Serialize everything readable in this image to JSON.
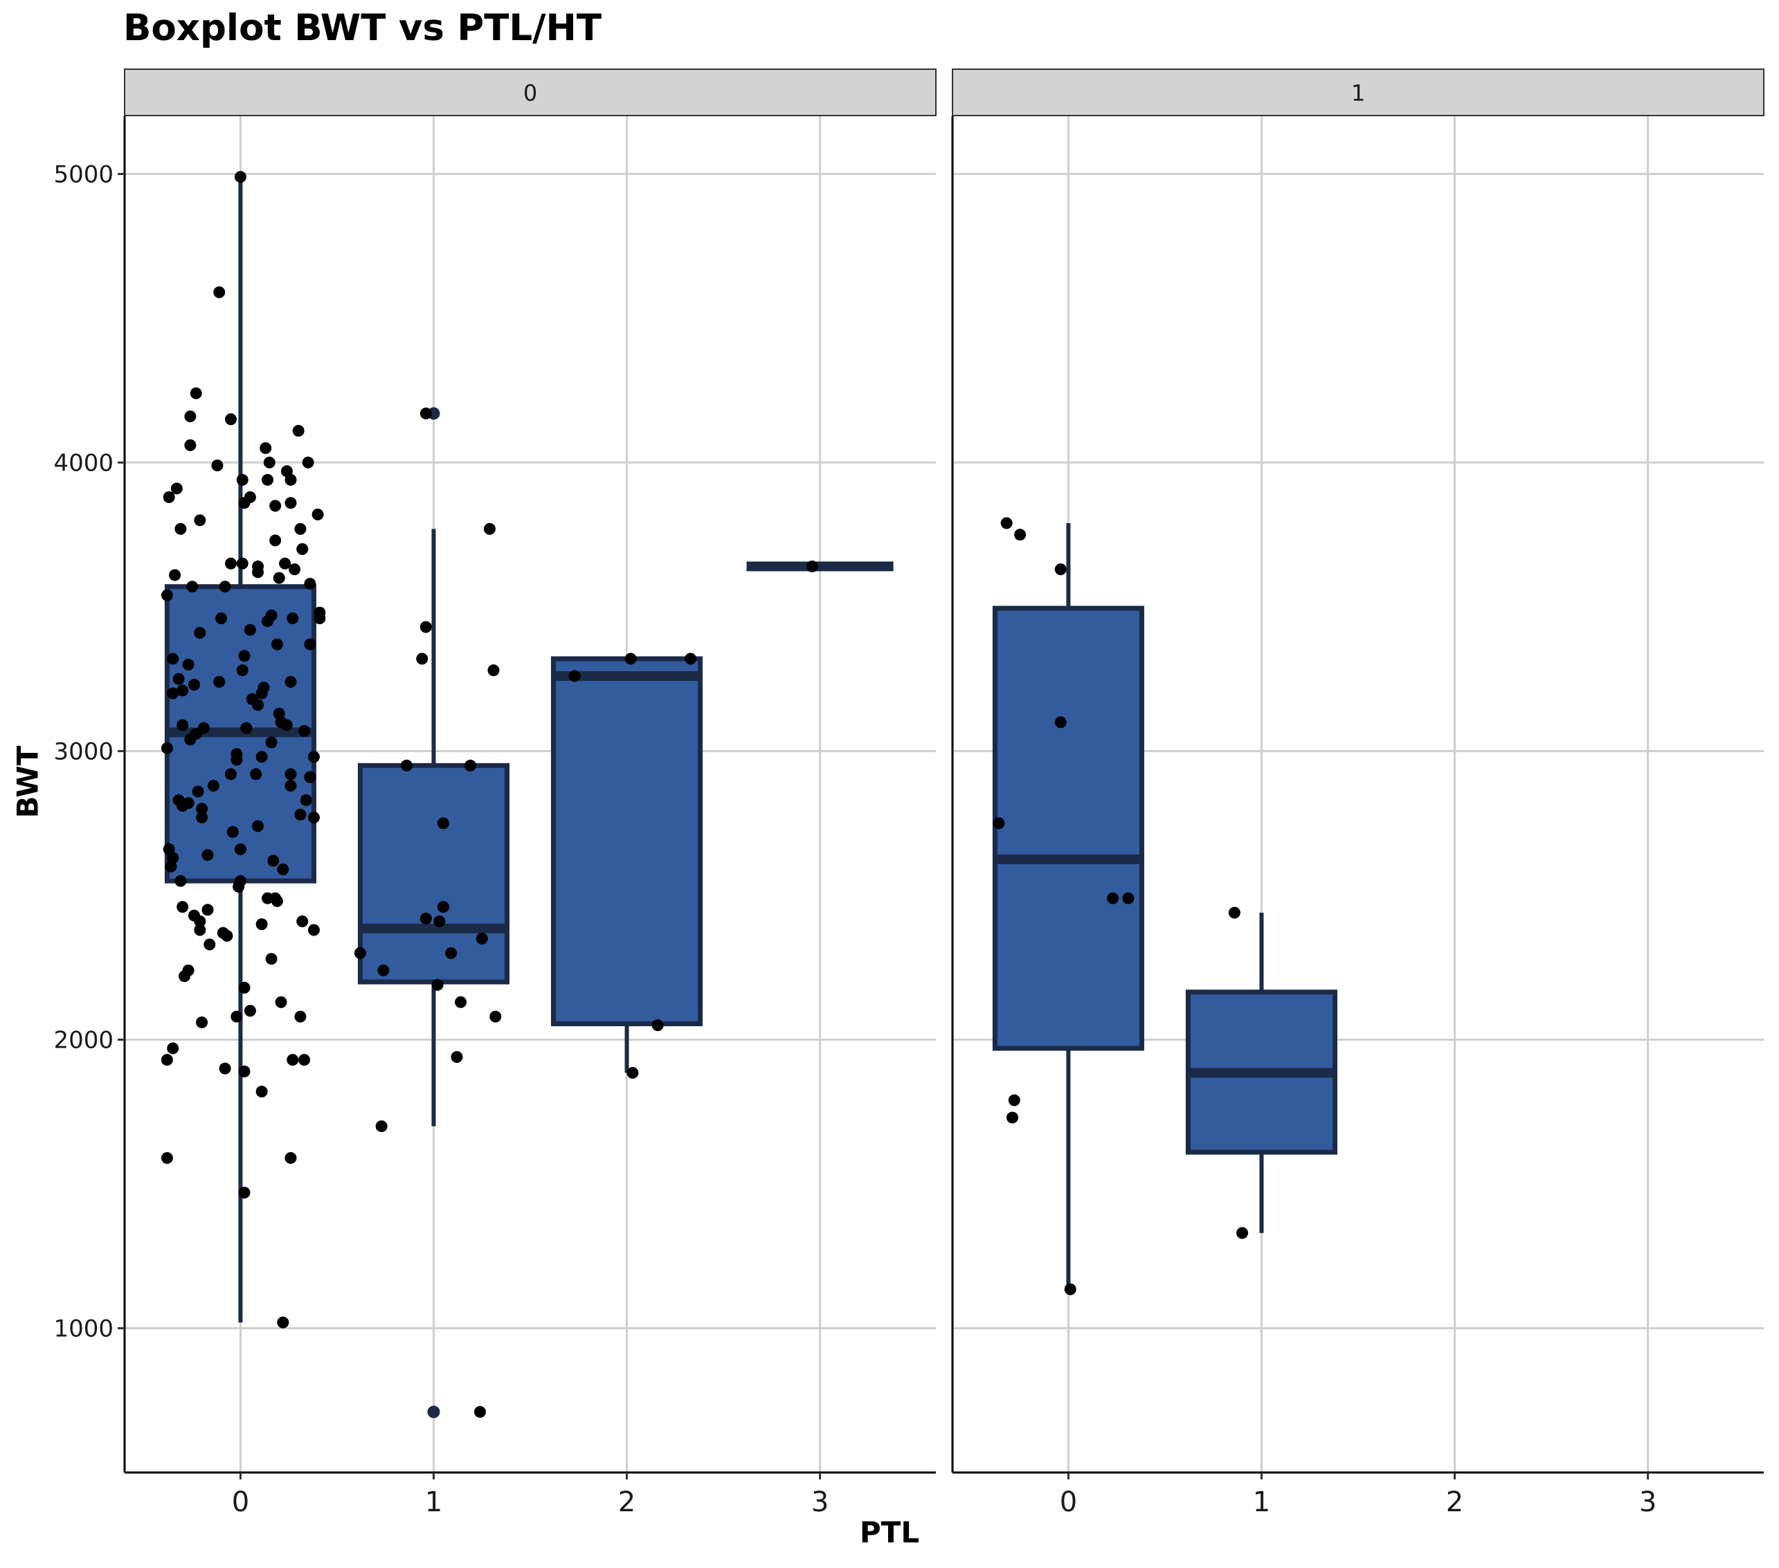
{
  "chart_data": {
    "type": "boxplot",
    "title": "Boxplot BWT vs PTL/HT",
    "xlabel": "PTL",
    "ylabel": "BWT",
    "x_categories": [
      0,
      1,
      2,
      3
    ],
    "xlim": [
      -0.6,
      3.6
    ],
    "ylim": [
      500,
      5200
    ],
    "y_ticks": [
      1000,
      2000,
      3000,
      4000,
      5000
    ],
    "grid": true,
    "colors": {
      "box_fill": "#335c9f",
      "box_outline": "#1b2a47",
      "points": "#000000",
      "strip_fill": "#d3d3d3",
      "grid": "#cfcfcf"
    },
    "facets": [
      {
        "label": "0",
        "boxes": [
          {
            "x": 0,
            "lower_whisker": 1020,
            "q1": 2550,
            "median": 3065,
            "q3": 3570,
            "upper_whisker": 4990
          },
          {
            "x": 1,
            "lower_whisker": 1700,
            "q1": 2200,
            "median": 2385,
            "q3": 2950,
            "upper_whisker": 3770,
            "outliers": [
              4170,
              710
            ]
          },
          {
            "x": 2,
            "lower_whisker": 1885,
            "q1": 2055,
            "median": 3260,
            "q3": 3320,
            "upper_whisker": 3320
          },
          {
            "x": 3,
            "lower_whisker": 3640,
            "q1": 3640,
            "median": 3640,
            "q3": 3640,
            "upper_whisker": 3640
          }
        ],
        "points": [
          [
            0.0,
            4990
          ],
          [
            -0.11,
            4590
          ],
          [
            -0.23,
            4240
          ],
          [
            -0.05,
            4150
          ],
          [
            -0.26,
            4160
          ],
          [
            0.3,
            4110
          ],
          [
            -0.26,
            4060
          ],
          [
            0.13,
            4050
          ],
          [
            -0.12,
            3990
          ],
          [
            0.35,
            4000
          ],
          [
            0.15,
            4000
          ],
          [
            0.24,
            3970
          ],
          [
            0.01,
            3940
          ],
          [
            0.14,
            3940
          ],
          [
            0.26,
            3940
          ],
          [
            -0.33,
            3910
          ],
          [
            -0.37,
            3880
          ],
          [
            0.05,
            3880
          ],
          [
            0.02,
            3860
          ],
          [
            0.18,
            3850
          ],
          [
            0.26,
            3860
          ],
          [
            0.4,
            3820
          ],
          [
            -0.21,
            3800
          ],
          [
            -0.31,
            3770
          ],
          [
            0.31,
            3770
          ],
          [
            0.18,
            3730
          ],
          [
            0.32,
            3700
          ],
          [
            -0.05,
            3650
          ],
          [
            0.01,
            3650
          ],
          [
            0.09,
            3640
          ],
          [
            0.23,
            3650
          ],
          [
            0.09,
            3620
          ],
          [
            -0.34,
            3610
          ],
          [
            0.28,
            3630
          ],
          [
            0.2,
            3600
          ],
          [
            0.36,
            3580
          ],
          [
            -0.25,
            3570
          ],
          [
            -0.08,
            3570
          ],
          [
            -0.38,
            3540
          ],
          [
            0.41,
            3480
          ],
          [
            0.41,
            3460
          ],
          [
            -0.1,
            3460
          ],
          [
            0.16,
            3470
          ],
          [
            0.27,
            3460
          ],
          [
            0.14,
            3450
          ],
          [
            -0.21,
            3410
          ],
          [
            0.05,
            3420
          ],
          [
            0.19,
            3370
          ],
          [
            0.36,
            3370
          ],
          [
            0.02,
            3330
          ],
          [
            -0.35,
            3320
          ],
          [
            -0.27,
            3300
          ],
          [
            0.01,
            3280
          ],
          [
            -0.32,
            3250
          ],
          [
            -0.11,
            3240
          ],
          [
            0.26,
            3240
          ],
          [
            -0.24,
            3230
          ],
          [
            0.12,
            3220
          ],
          [
            -0.3,
            3210
          ],
          [
            -0.35,
            3200
          ],
          [
            0.11,
            3200
          ],
          [
            0.06,
            3180
          ],
          [
            0.09,
            3160
          ],
          [
            0.2,
            3130
          ],
          [
            0.21,
            3100
          ],
          [
            -0.3,
            3090
          ],
          [
            0.24,
            3090
          ],
          [
            -0.19,
            3080
          ],
          [
            0.03,
            3080
          ],
          [
            0.33,
            3070
          ],
          [
            -0.23,
            3060
          ],
          [
            -0.26,
            3040
          ],
          [
            0.16,
            3030
          ],
          [
            0.38,
            2980
          ],
          [
            -0.02,
            2990
          ],
          [
            0.11,
            2980
          ],
          [
            -0.38,
            3010
          ],
          [
            -0.02,
            2970
          ],
          [
            -0.05,
            2920
          ],
          [
            0.08,
            2920
          ],
          [
            0.26,
            2920
          ],
          [
            0.36,
            2910
          ],
          [
            0.26,
            2880
          ],
          [
            -0.14,
            2880
          ],
          [
            -0.22,
            2860
          ],
          [
            -0.32,
            2830
          ],
          [
            -0.27,
            2820
          ],
          [
            0.34,
            2830
          ],
          [
            -0.3,
            2810
          ],
          [
            -0.2,
            2800
          ],
          [
            0.31,
            2780
          ],
          [
            -0.2,
            2770
          ],
          [
            0.38,
            2770
          ],
          [
            0.09,
            2740
          ],
          [
            -0.04,
            2720
          ],
          [
            0.0,
            2660
          ],
          [
            -0.37,
            2660
          ],
          [
            -0.35,
            2630
          ],
          [
            -0.17,
            2640
          ],
          [
            0.17,
            2620
          ],
          [
            -0.36,
            2600
          ],
          [
            0.22,
            2590
          ],
          [
            -0.31,
            2550
          ],
          [
            -0.01,
            2530
          ],
          [
            0.0,
            2550
          ],
          [
            0.14,
            2490
          ],
          [
            0.18,
            2490
          ],
          [
            0.19,
            2480
          ],
          [
            -0.3,
            2460
          ],
          [
            -0.17,
            2450
          ],
          [
            -0.24,
            2430
          ],
          [
            -0.21,
            2410
          ],
          [
            0.32,
            2410
          ],
          [
            -0.21,
            2380
          ],
          [
            0.38,
            2380
          ],
          [
            -0.09,
            2370
          ],
          [
            -0.07,
            2360
          ],
          [
            0.11,
            2400
          ],
          [
            -0.16,
            2330
          ],
          [
            0.16,
            2280
          ],
          [
            -0.27,
            2240
          ],
          [
            -0.29,
            2220
          ],
          [
            0.02,
            2180
          ],
          [
            0.21,
            2130
          ],
          [
            0.05,
            2100
          ],
          [
            0.31,
            2080
          ],
          [
            -0.02,
            2080
          ],
          [
            -0.2,
            2060
          ],
          [
            -0.35,
            1970
          ],
          [
            -0.38,
            1930
          ],
          [
            0.27,
            1930
          ],
          [
            0.33,
            1930
          ],
          [
            -0.08,
            1900
          ],
          [
            0.02,
            1890
          ],
          [
            0.11,
            1820
          ],
          [
            -0.38,
            1590
          ],
          [
            0.26,
            1590
          ],
          [
            0.02,
            1470
          ],
          [
            0.22,
            1020
          ],
          [
            0.96,
            4170
          ],
          [
            1.29,
            3770
          ],
          [
            0.96,
            3430
          ],
          [
            1.31,
            3280
          ],
          [
            0.94,
            3320
          ],
          [
            0.86,
            2950
          ],
          [
            1.19,
            2950
          ],
          [
            1.05,
            2750
          ],
          [
            1.05,
            2460
          ],
          [
            0.96,
            2420
          ],
          [
            1.03,
            2410
          ],
          [
            1.25,
            2350
          ],
          [
            0.62,
            2300
          ],
          [
            1.09,
            2300
          ],
          [
            0.74,
            2240
          ],
          [
            1.02,
            2190
          ],
          [
            1.14,
            2130
          ],
          [
            1.32,
            2080
          ],
          [
            1.12,
            1940
          ],
          [
            0.73,
            1700
          ],
          [
            1.24,
            710
          ],
          [
            1.73,
            3260
          ],
          [
            2.02,
            3320
          ],
          [
            2.33,
            3320
          ],
          [
            2.16,
            2050
          ],
          [
            2.03,
            1885
          ],
          [
            2.96,
            3640
          ]
        ]
      },
      {
        "label": "1",
        "boxes": [
          {
            "x": 0,
            "lower_whisker": 1135,
            "q1": 1970,
            "median": 2625,
            "q3": 3495,
            "upper_whisker": 3790
          },
          {
            "x": 1,
            "lower_whisker": 1330,
            "q1": 1610,
            "median": 1885,
            "q3": 2165,
            "upper_whisker": 2440
          }
        ],
        "points": [
          [
            -0.32,
            3790
          ],
          [
            -0.25,
            3750
          ],
          [
            -0.04,
            3630
          ],
          [
            -0.04,
            3100
          ],
          [
            -0.36,
            2750
          ],
          [
            0.23,
            2490
          ],
          [
            0.31,
            2490
          ],
          [
            -0.28,
            1790
          ],
          [
            -0.29,
            1730
          ],
          [
            0.01,
            1135
          ],
          [
            0.86,
            2440
          ],
          [
            0.9,
            1330
          ]
        ]
      }
    ]
  }
}
